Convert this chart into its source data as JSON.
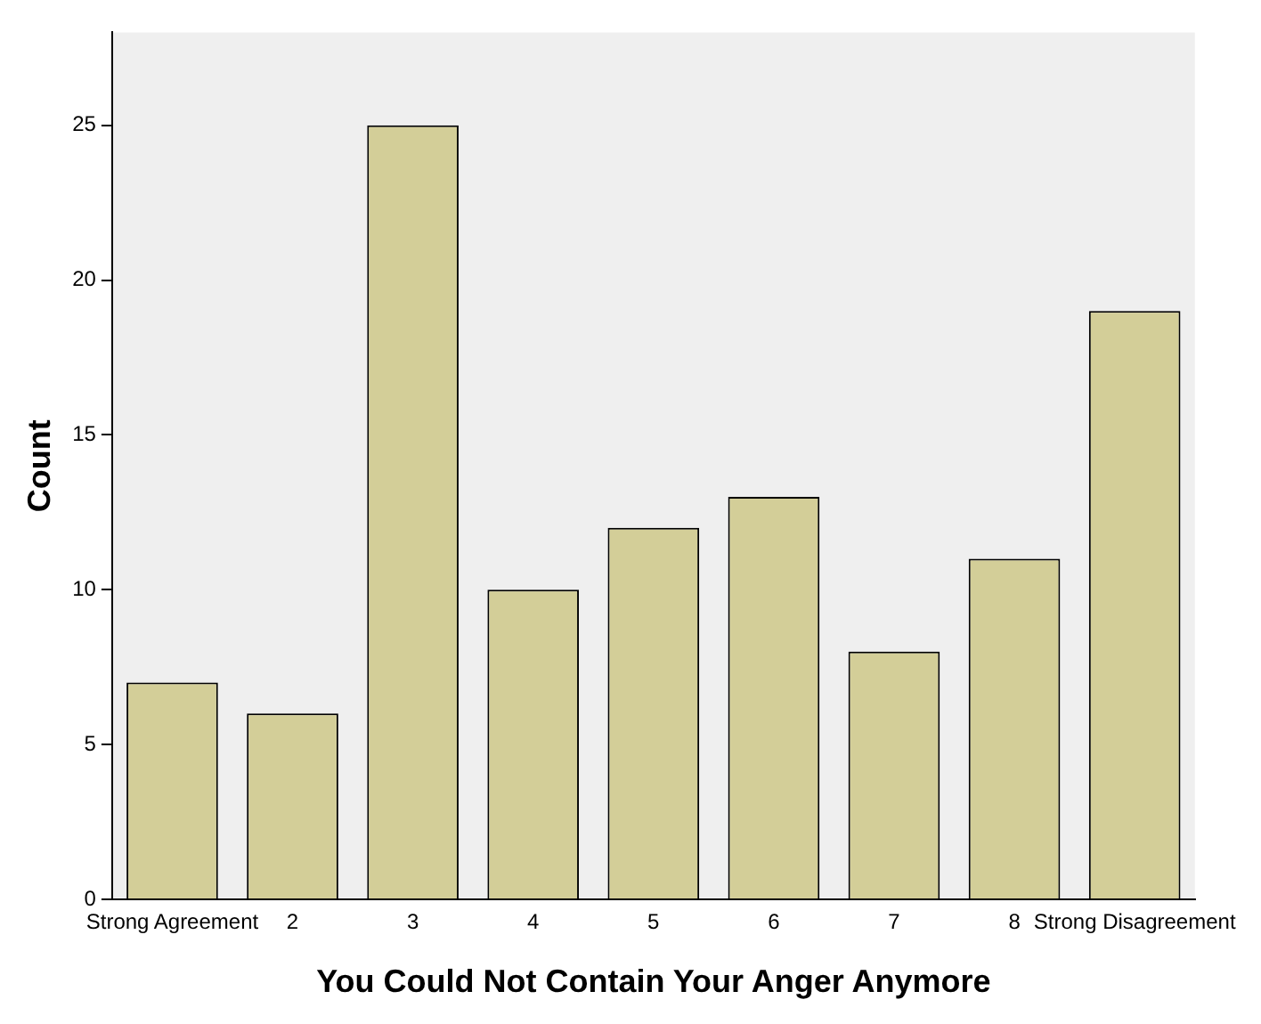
{
  "chart_data": {
    "type": "bar",
    "xlabel": "You Could Not Contain Your Anger Anymore",
    "ylabel": "Count",
    "categories": [
      "Strong Agreement",
      "2",
      "3",
      "4",
      "5",
      "6",
      "7",
      "8",
      "Strong Disagreement"
    ],
    "values": [
      7,
      6,
      25,
      10,
      12,
      13,
      8,
      11,
      19
    ],
    "color": "#d3ce98",
    "ylim": [
      0,
      28
    ],
    "yticks": [
      0,
      5,
      10,
      15,
      20,
      25
    ],
    "grid": false,
    "legend": false
  }
}
